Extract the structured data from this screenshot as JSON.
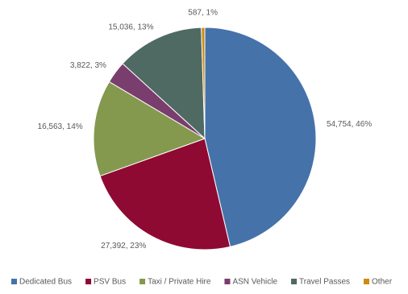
{
  "chart_data": {
    "type": "pie",
    "categories": [
      "Dedicated Bus",
      "PSV Bus",
      "Taxi / Private Hire",
      "ASN Vehicle",
      "Travel Passes",
      "Other"
    ],
    "values": [
      54754,
      27392,
      16563,
      3822,
      15036,
      587
    ],
    "value_labels": [
      "54,754, 46%",
      "27,392, 23%",
      "16,563, 14%",
      "3,822, 3%",
      "15,036, 13%",
      "587, 1%"
    ],
    "colors": [
      "#4672aa",
      "#8e0a33",
      "#84994e",
      "#7a3e6e",
      "#4f6a62",
      "#d08a12"
    ],
    "legend": "bottom"
  }
}
